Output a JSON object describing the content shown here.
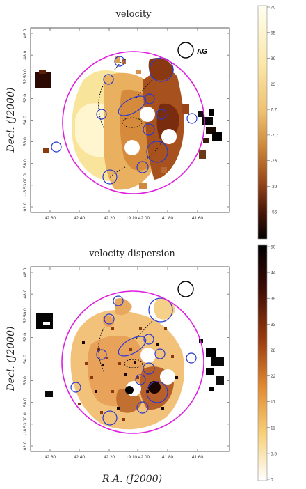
{
  "chart_data": [
    {
      "type": "heatmap",
      "title": "velocity",
      "xlabel": "",
      "ylabel": "Decl. (J2000)",
      "x_tick_labels": [
        "42.60",
        "42.40",
        "42.20",
        "19:10:42.00",
        "41.80",
        "41.60"
      ],
      "y_tick_labels": [
        "46.0",
        "48.0",
        "52:50.0",
        "52.0",
        "54.0",
        "56.0",
        "58.0",
        "-18:53:00.0",
        "02.0"
      ],
      "colorbar_ticks": [
        "70",
        "55",
        "39",
        "23",
        "7.7",
        "-7.7",
        "-23",
        "-39",
        "-55"
      ],
      "colorbar_range": [
        -70,
        70
      ],
      "colorscale": "light yellow (high) to black (low)",
      "annotation": "AG"
    },
    {
      "type": "heatmap",
      "title": "velocity dispersion",
      "xlabel": "R.A. (J2000)",
      "ylabel": "Decl. (J2000)",
      "x_tick_labels": [
        "42.60",
        "42.40",
        "42.20",
        "19:10:42.00",
        "41.80",
        "41.60"
      ],
      "y_tick_labels": [
        "46.0",
        "48.0",
        "52:50.0",
        "52.0",
        "54.0",
        "56.0",
        "58.0",
        "-18:53:00.0",
        "02.0"
      ],
      "colorbar_ticks": [
        "50",
        "44",
        "39",
        "33",
        "28",
        "22",
        "17",
        "11",
        "5.5",
        "0"
      ],
      "colorbar_range": [
        0,
        50
      ],
      "colorscale": "black (high) to white (low)"
    }
  ],
  "colors": {
    "big_circle": "#e020e0",
    "small_circles": "#2a3bd0",
    "text": "#222222"
  }
}
